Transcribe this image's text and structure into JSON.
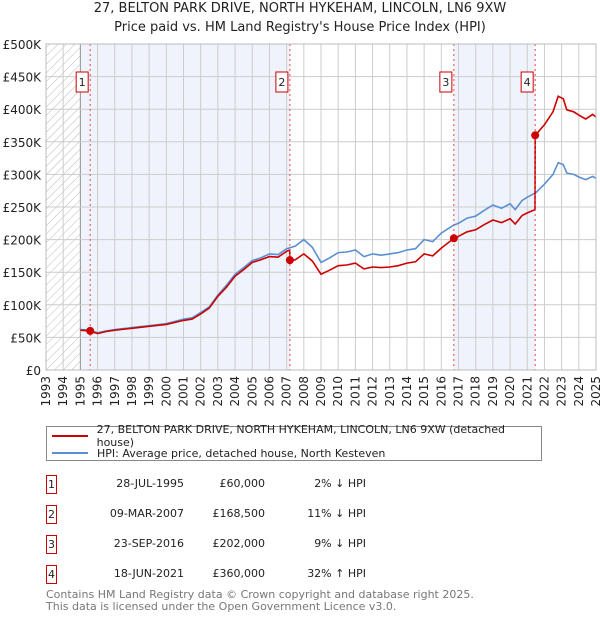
{
  "title": "27, BELTON PARK DRIVE, NORTH HYKEHAM, LINCOLN, LN6 9XW",
  "subtitle": "Price paid vs. HM Land Registry's House Price Index (HPI)",
  "colors": {
    "property": "#cc0000",
    "hpi": "#5b8fd4",
    "shade": "#eef3fc",
    "grid": "#cccccc"
  },
  "chart_data": {
    "type": "line",
    "title": "27, BELTON PARK DRIVE, NORTH HYKEHAM, LINCOLN, LN6 9XW",
    "xlim": [
      1993,
      2025
    ],
    "ylim": [
      0,
      500000
    ],
    "x_ticks": [
      "1993",
      "1994",
      "1995",
      "1996",
      "1997",
      "1998",
      "1999",
      "2000",
      "2001",
      "2002",
      "2003",
      "2004",
      "2005",
      "2006",
      "2007",
      "2008",
      "2009",
      "2010",
      "2011",
      "2012",
      "2013",
      "2014",
      "2015",
      "2016",
      "2017",
      "2018",
      "2019",
      "2020",
      "2021",
      "2022",
      "2023",
      "2024",
      "2025"
    ],
    "y_ticks": [
      {
        "v": 0,
        "label": "£0"
      },
      {
        "v": 50000,
        "label": "£50K"
      },
      {
        "v": 100000,
        "label": "£100K"
      },
      {
        "v": 150000,
        "label": "£150K"
      },
      {
        "v": 200000,
        "label": "£200K"
      },
      {
        "v": 250000,
        "label": "£250K"
      },
      {
        "v": 300000,
        "label": "£300K"
      },
      {
        "v": 350000,
        "label": "£350K"
      },
      {
        "v": 400000,
        "label": "£400K"
      },
      {
        "v": 450000,
        "label": "£450K"
      },
      {
        "v": 500000,
        "label": "£500K"
      }
    ],
    "hatched_before": 1995,
    "shaded_ranges": [
      [
        1995.0,
        2007.19
      ],
      [
        2016.73,
        2021.46
      ]
    ],
    "series": [
      {
        "name": "27, BELTON PARK DRIVE, NORTH HYKEHAM, LINCOLN, LN6 9XW (detached house)",
        "color": "#cc0000",
        "x": [
          1995,
          1995.5,
          1996,
          1996.5,
          1997,
          1998,
          1999,
          2000,
          2001,
          2001.5,
          2002,
          2002.5,
          2003,
          2003.5,
          2004,
          2004.5,
          2005,
          2005.5,
          2006,
          2006.5,
          2007,
          2007.18,
          2007.19,
          2007.5,
          2008,
          2008.5,
          2009,
          2009.5,
          2010,
          2010.5,
          2011,
          2011.5,
          2012,
          2012.5,
          2013,
          2013.5,
          2014,
          2014.5,
          2015,
          2015.5,
          2016,
          2016.73,
          2017,
          2017.5,
          2018,
          2018.5,
          2019,
          2019.5,
          2020,
          2020.3,
          2020.7,
          2021,
          2021.45,
          2021.46,
          2022,
          2022.5,
          2022.8,
          2023.1,
          2023.3,
          2023.7,
          2024,
          2024.4,
          2024.8,
          2025
        ],
        "y": [
          61000,
          60000,
          56000,
          59000,
          61000,
          64000,
          67000,
          70000,
          76000,
          78000,
          86000,
          95000,
          113000,
          127000,
          144000,
          154000,
          165000,
          169000,
          174000,
          173000,
          182000,
          184000,
          168500,
          169000,
          178000,
          167000,
          147000,
          153000,
          160000,
          161000,
          164000,
          155000,
          158000,
          157000,
          158000,
          160000,
          164000,
          166000,
          178000,
          175000,
          187000,
          202000,
          205000,
          212000,
          215000,
          223000,
          230000,
          226000,
          232000,
          224000,
          237000,
          241000,
          246000,
          360000,
          376000,
          396000,
          420000,
          416000,
          399000,
          396000,
          391000,
          385000,
          392000,
          388000
        ]
      },
      {
        "name": "HPI: Average price, detached house, North Kesteven",
        "color": "#5b8fd4",
        "x": [
          1995,
          1995.5,
          1996,
          1996.5,
          1997,
          1998,
          1999,
          2000,
          2001,
          2001.5,
          2002,
          2002.5,
          2003,
          2003.5,
          2004,
          2004.5,
          2005,
          2005.5,
          2006,
          2006.5,
          2007,
          2007.5,
          2008,
          2008.5,
          2009,
          2009.5,
          2010,
          2010.5,
          2011,
          2011.5,
          2012,
          2012.5,
          2013,
          2013.5,
          2014,
          2014.5,
          2015,
          2015.5,
          2016,
          2016.7,
          2017,
          2017.5,
          2018,
          2018.5,
          2019,
          2019.5,
          2020,
          2020.3,
          2020.7,
          2021,
          2021.5,
          2022,
          2022.5,
          2022.8,
          2023.1,
          2023.3,
          2023.7,
          2024,
          2024.4,
          2024.8,
          2025
        ],
        "y": [
          62000,
          61000,
          57000,
          60000,
          62000,
          65000,
          68000,
          71000,
          78000,
          80000,
          88000,
          97000,
          115000,
          130000,
          147000,
          157000,
          168000,
          172000,
          178000,
          177000,
          186000,
          190000,
          200000,
          188000,
          165000,
          172000,
          180000,
          181000,
          184000,
          174000,
          178000,
          176000,
          178000,
          180000,
          184000,
          186000,
          200000,
          197000,
          210000,
          222000,
          225000,
          233000,
          236000,
          245000,
          253000,
          248000,
          255000,
          246000,
          260000,
          265000,
          272000,
          285000,
          300000,
          318000,
          315000,
          302000,
          300000,
          296000,
          292000,
          297000,
          294000
        ]
      }
    ],
    "sales": [
      {
        "label": "1",
        "x": 2007.19,
        "dx": 1995.57,
        "price": 60000
      },
      {
        "label": "2",
        "dx": 2007.19,
        "price": 168500
      },
      {
        "label": "3",
        "dx": 2016.73,
        "price": 202000
      },
      {
        "label": "4",
        "dx": 2021.46,
        "price": 360000
      }
    ]
  },
  "legend": {
    "property": "27, BELTON PARK DRIVE, NORTH HYKEHAM, LINCOLN, LN6 9XW (detached house)",
    "hpi": "HPI: Average price, detached house, North Kesteven"
  },
  "transactions": [
    {
      "num": "1",
      "date": "28-JUL-1995",
      "price": "£60,000",
      "hpi": "2% ↓ HPI"
    },
    {
      "num": "2",
      "date": "09-MAR-2007",
      "price": "£168,500",
      "hpi": "11% ↓ HPI"
    },
    {
      "num": "3",
      "date": "23-SEP-2016",
      "price": "£202,000",
      "hpi": "9% ↓ HPI"
    },
    {
      "num": "4",
      "date": "18-JUN-2021",
      "price": "£360,000",
      "hpi": "32% ↑ HPI"
    }
  ],
  "footer": {
    "line1": "Contains HM Land Registry data © Crown copyright and database right 2025.",
    "line2": "This data is licensed under the Open Government Licence v3.0."
  }
}
